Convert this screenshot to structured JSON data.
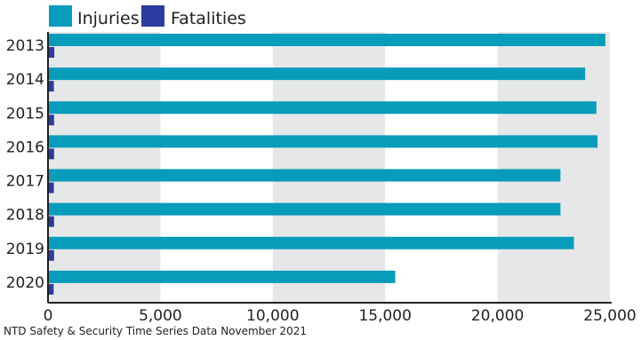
{
  "chart_data": {
    "type": "bar",
    "orientation": "horizontal",
    "categories": [
      "2013",
      "2014",
      "2015",
      "2016",
      "2017",
      "2018",
      "2019",
      "2020"
    ],
    "series": [
      {
        "name": "Injuries",
        "color": "#079CB9",
        "values": [
          24800,
          23900,
          24400,
          24450,
          22800,
          22800,
          23400,
          15450
        ]
      },
      {
        "name": "Fatalities",
        "color": "#2A3D9E",
        "values": [
          280,
          260,
          270,
          270,
          260,
          270,
          270,
          250
        ]
      }
    ],
    "x_ticks": [
      "0",
      "5,000",
      "10,000",
      "15,000",
      "20,000",
      "25,000"
    ],
    "xlim": [
      0,
      25000
    ],
    "grid": "alternating shaded bands",
    "legend_position": "top-left"
  },
  "source_note": "NTD Safety & Security Time Series Data November 2021"
}
